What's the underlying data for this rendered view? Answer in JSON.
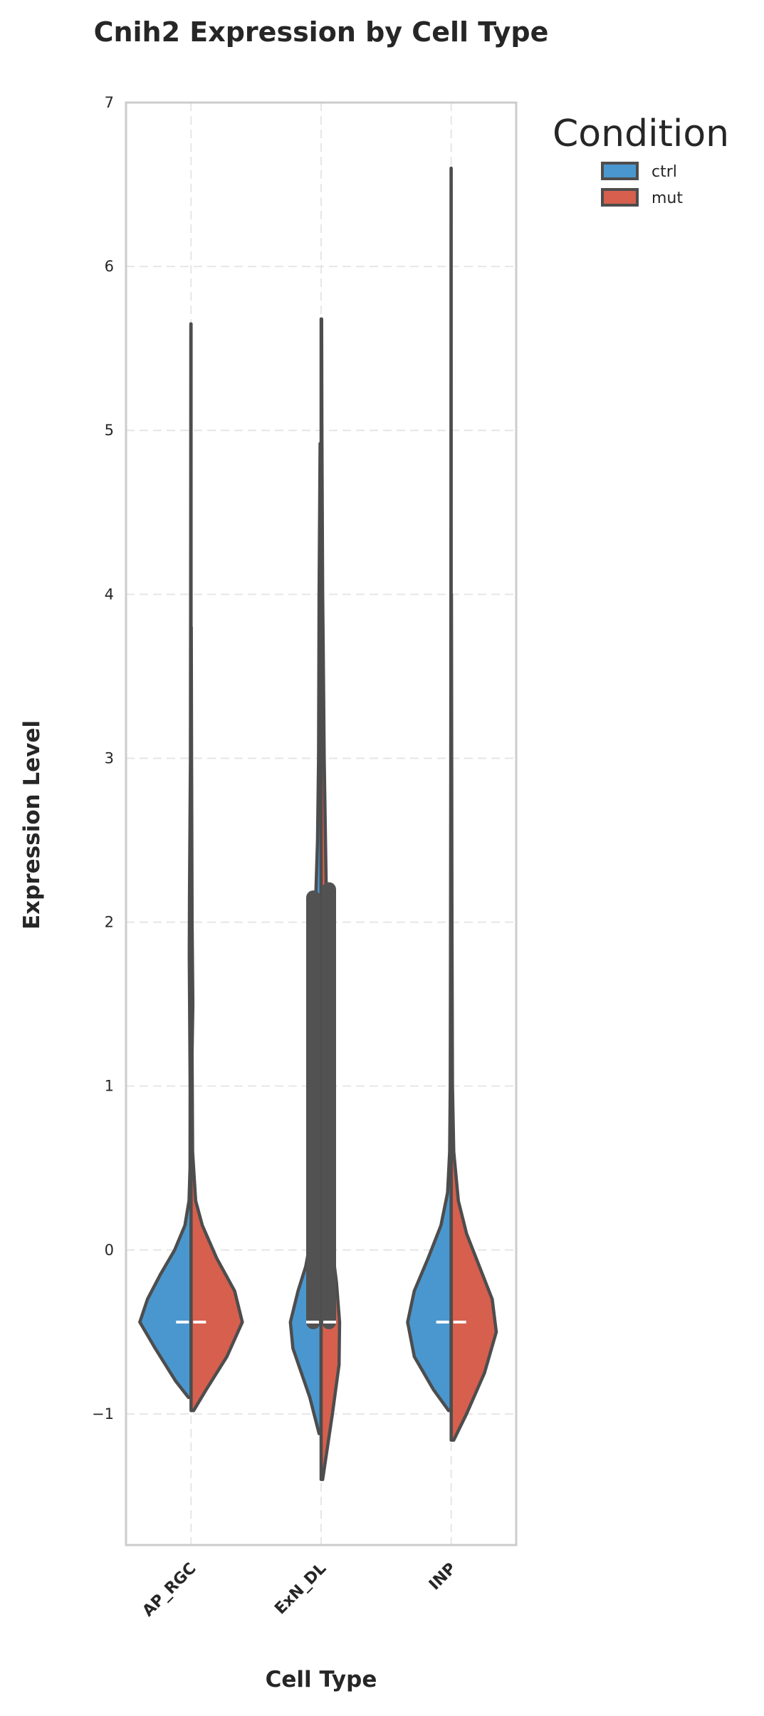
{
  "chart_data": {
    "type": "violin",
    "title": "Cnih2 Expression by Cell Type",
    "xlabel": "Cell Type",
    "ylabel": "Expression Level",
    "categories": [
      "AP_RGC",
      "ExN_DL",
      "INP"
    ],
    "ylim": [
      -1.8,
      7.0
    ],
    "yticks": [
      -1,
      0,
      1,
      2,
      3,
      4,
      5,
      6,
      7
    ],
    "ytick_labels": [
      "−1",
      "0",
      "1",
      "2",
      "3",
      "4",
      "5",
      "6",
      "7"
    ],
    "grid": true,
    "split": true,
    "legend": {
      "title": "Condition",
      "position": "outside-top-right"
    },
    "series": [
      {
        "name": "ctrl",
        "color": "#4A97CF",
        "violins": [
          {
            "category": "AP_RGC",
            "min": -0.9,
            "max": 5.65,
            "median": -0.44,
            "density": [
              [
                -0.9,
                0.05
              ],
              [
                -0.8,
                0.3
              ],
              [
                -0.6,
                0.7
              ],
              [
                -0.44,
                1.0
              ],
              [
                -0.3,
                0.85
              ],
              [
                -0.15,
                0.6
              ],
              [
                0.0,
                0.32
              ],
              [
                0.15,
                0.12
              ],
              [
                0.3,
                0.04
              ],
              [
                0.5,
                0.02
              ],
              [
                1.0,
                0.018
              ],
              [
                1.8,
                0.035
              ],
              [
                2.2,
                0.03
              ],
              [
                3.0,
                0.012
              ],
              [
                4.0,
                0.008
              ],
              [
                5.65,
                0.004
              ]
            ]
          },
          {
            "category": "ExN_DL",
            "min": -1.12,
            "max": 4.92,
            "median": -0.44,
            "density": [
              [
                -1.12,
                0.04
              ],
              [
                -0.9,
                0.22
              ],
              [
                -0.6,
                0.55
              ],
              [
                -0.44,
                0.6
              ],
              [
                -0.25,
                0.45
              ],
              [
                -0.1,
                0.3
              ],
              [
                0.1,
                0.18
              ],
              [
                0.5,
                0.14
              ],
              [
                1.0,
                0.13
              ],
              [
                1.5,
                0.13
              ],
              [
                2.0,
                0.12
              ],
              [
                2.5,
                0.07
              ],
              [
                3.0,
                0.05
              ],
              [
                4.0,
                0.04
              ],
              [
                4.92,
                0.02
              ]
            ]
          },
          {
            "category": "INP",
            "min": -0.98,
            "max": 6.6,
            "median": -0.44,
            "density": [
              [
                -0.98,
                0.05
              ],
              [
                -0.85,
                0.35
              ],
              [
                -0.65,
                0.72
              ],
              [
                -0.44,
                0.85
              ],
              [
                -0.25,
                0.72
              ],
              [
                -0.05,
                0.45
              ],
              [
                0.15,
                0.2
              ],
              [
                0.35,
                0.07
              ],
              [
                0.6,
                0.03
              ],
              [
                1.0,
                0.018
              ],
              [
                2.0,
                0.012
              ],
              [
                3.0,
                0.008
              ],
              [
                4.0,
                0.005
              ],
              [
                6.6,
                0.002
              ]
            ]
          }
        ]
      },
      {
        "name": "mut",
        "color": "#D65F4E",
        "violins": [
          {
            "category": "AP_RGC",
            "min": -0.98,
            "max": 3.8,
            "median": -0.44,
            "density": [
              [
                -0.98,
                0.05
              ],
              [
                -0.85,
                0.3
              ],
              [
                -0.65,
                0.7
              ],
              [
                -0.44,
                1.0
              ],
              [
                -0.25,
                0.85
              ],
              [
                -0.05,
                0.5
              ],
              [
                0.15,
                0.22
              ],
              [
                0.3,
                0.09
              ],
              [
                0.6,
                0.03
              ],
              [
                1.2,
                0.02
              ],
              [
                1.5,
                0.035
              ],
              [
                2.0,
                0.02
              ],
              [
                3.0,
                0.01
              ],
              [
                3.8,
                0.004
              ]
            ]
          },
          {
            "category": "ExN_DL",
            "min": -1.4,
            "max": 5.68,
            "median": -0.44,
            "density": [
              [
                -1.4,
                0.03
              ],
              [
                -1.0,
                0.22
              ],
              [
                -0.7,
                0.35
              ],
              [
                -0.44,
                0.36
              ],
              [
                -0.2,
                0.3
              ],
              [
                0.0,
                0.22
              ],
              [
                0.3,
                0.15
              ],
              [
                1.0,
                0.13
              ],
              [
                2.0,
                0.13
              ],
              [
                2.2,
                0.1
              ],
              [
                3.0,
                0.06
              ],
              [
                3.7,
                0.04
              ],
              [
                4.0,
                0.03
              ],
              [
                5.0,
                0.015
              ],
              [
                5.68,
                0.01
              ]
            ]
          },
          {
            "category": "INP",
            "min": -1.16,
            "max": 4.0,
            "median": -0.44,
            "density": [
              [
                -1.16,
                0.05
              ],
              [
                -1.0,
                0.3
              ],
              [
                -0.75,
                0.65
              ],
              [
                -0.5,
                0.88
              ],
              [
                -0.3,
                0.8
              ],
              [
                -0.1,
                0.55
              ],
              [
                0.1,
                0.3
              ],
              [
                0.3,
                0.14
              ],
              [
                0.6,
                0.05
              ],
              [
                1.0,
                0.025
              ],
              [
                2.0,
                0.015
              ],
              [
                3.0,
                0.01
              ],
              [
                4.0,
                0.005
              ]
            ]
          }
        ]
      }
    ],
    "sticks": [
      {
        "category": "ExN_DL",
        "side": "ctrl",
        "from": -0.44,
        "to": 2.15
      },
      {
        "category": "ExN_DL",
        "side": "mut",
        "from": -0.44,
        "to": 2.2
      }
    ]
  }
}
